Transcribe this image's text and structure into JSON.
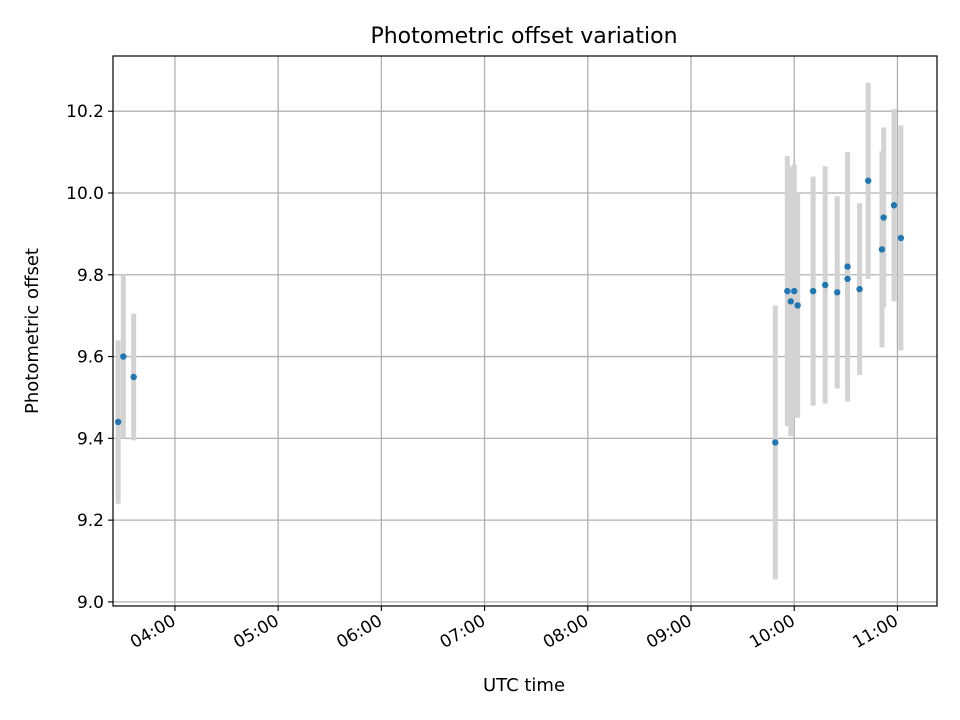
{
  "chart_data": {
    "type": "scatter",
    "title": "Photometric offset variation",
    "xlabel": "UTC time",
    "ylabel": "Photometric offset",
    "xaxis_kind": "time",
    "xlim": [
      "03:24",
      "11:23"
    ],
    "ylim": [
      8.99,
      10.335
    ],
    "x_ticks": [
      "04:00",
      "05:00",
      "06:00",
      "07:00",
      "08:00",
      "09:00",
      "10:00",
      "11:00"
    ],
    "y_ticks": [
      "9.0",
      "9.2",
      "9.4",
      "9.6",
      "9.8",
      "10.0",
      "10.2"
    ],
    "grid": true,
    "legend": "none",
    "colors": {
      "marker": "#1f77b4",
      "errorbar": "#d3d3d3",
      "grid": "#b0b0b0"
    },
    "points": [
      {
        "x": "03:27",
        "y": 9.44,
        "err": 0.2
      },
      {
        "x": "03:30",
        "y": 9.6,
        "err": 0.2
      },
      {
        "x": "03:36",
        "y": 9.55,
        "err": 0.155
      },
      {
        "x": "09:49",
        "y": 9.39,
        "err": 0.335
      },
      {
        "x": "09:56",
        "y": 9.76,
        "err": 0.33
      },
      {
        "x": "09:58",
        "y": 9.735,
        "err": 0.33
      },
      {
        "x": "10:00",
        "y": 9.76,
        "err": 0.31
      },
      {
        "x": "10:02",
        "y": 9.725,
        "err": 0.275
      },
      {
        "x": "10:11",
        "y": 9.76,
        "err": 0.28
      },
      {
        "x": "10:18",
        "y": 9.775,
        "err": 0.29
      },
      {
        "x": "10:25",
        "y": 9.757,
        "err": 0.235
      },
      {
        "x": "10:31",
        "y": 9.82,
        "err": 0.28
      },
      {
        "x": "10:31",
        "y": 9.79,
        "err": 0.3
      },
      {
        "x": "10:38",
        "y": 9.765,
        "err": 0.21
      },
      {
        "x": "10:43",
        "y": 10.03,
        "err": 0.24
      },
      {
        "x": "10:51",
        "y": 9.862,
        "err": 0.24
      },
      {
        "x": "10:52",
        "y": 9.94,
        "err": 0.22
      },
      {
        "x": "10:58",
        "y": 9.97,
        "err": 0.235
      },
      {
        "x": "11:02",
        "y": 9.89,
        "err": 0.275
      }
    ]
  }
}
